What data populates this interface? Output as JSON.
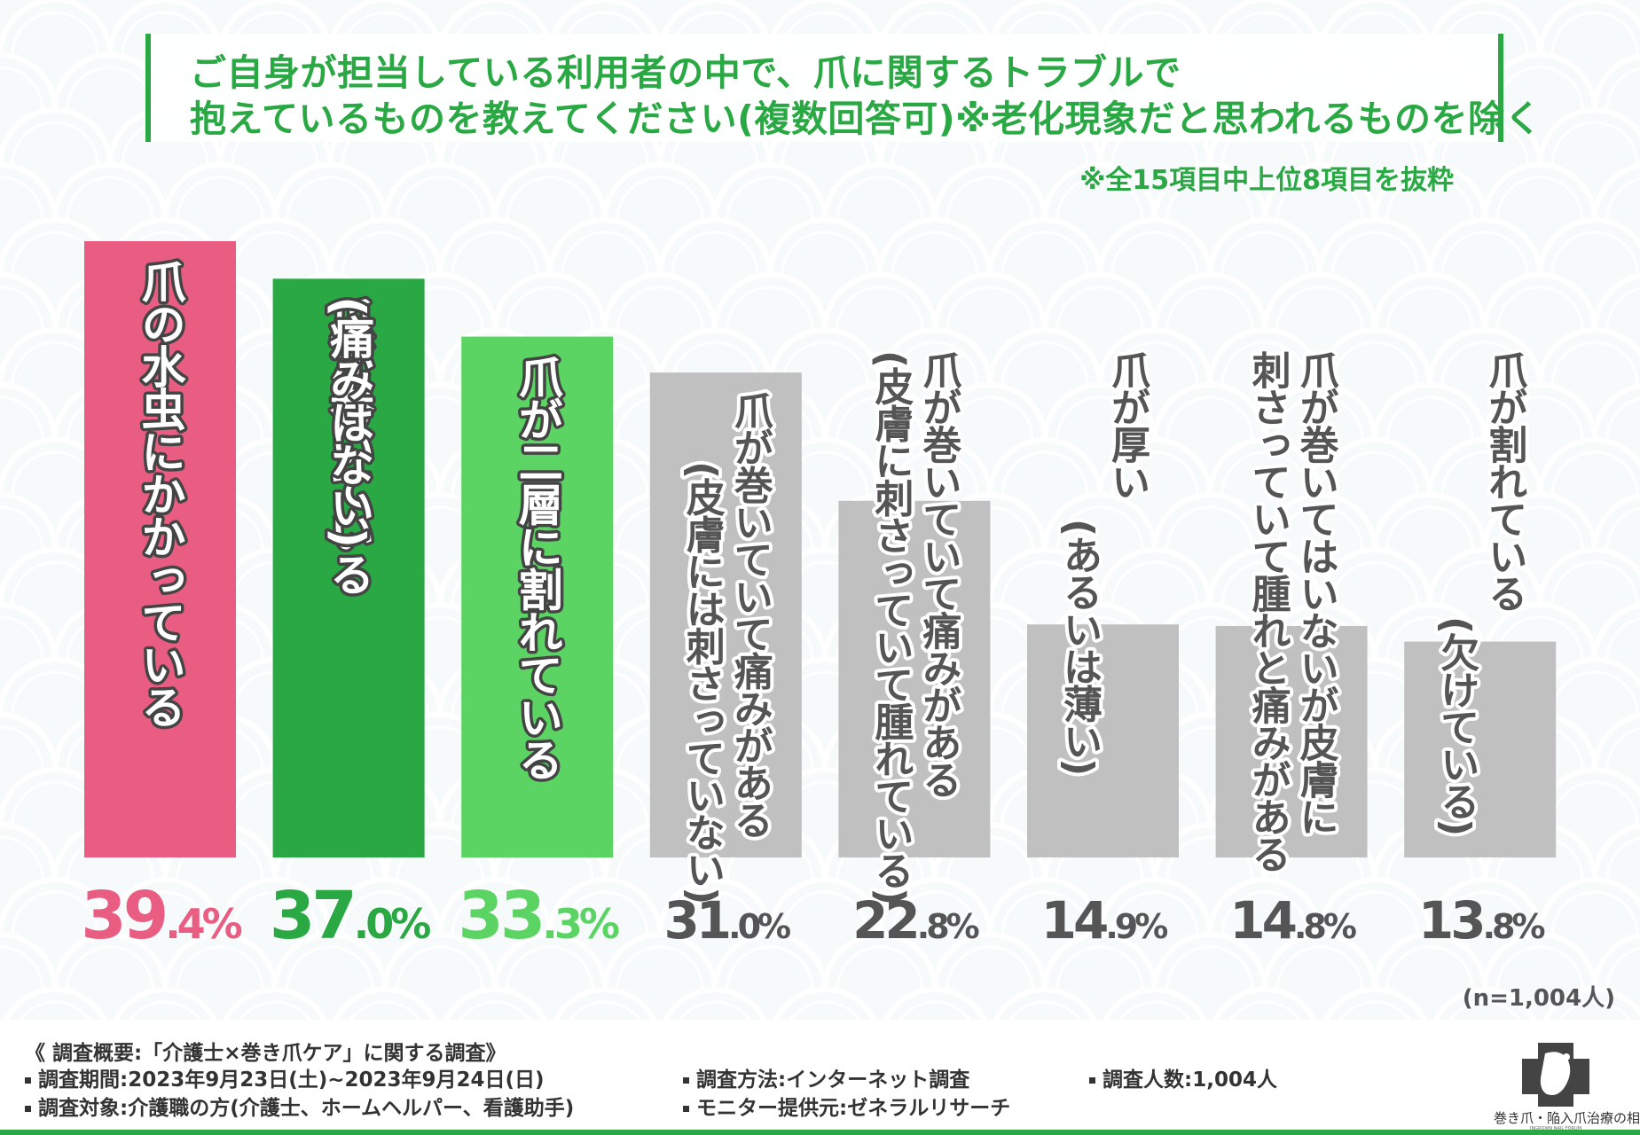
{
  "title": {
    "line1": "ご自身が担当している利用者の中で、爪に関するトラブルで",
    "line2": "抱えているものを教えてください(複数回答可)※老化現象だと思われるものを除く"
  },
  "note": "※全15項目中上位8項目を抜粋",
  "sample_size": "(n=1,004人)",
  "colors": {
    "accent": "#2aa843",
    "bar1": "#e85d81",
    "bar2": "#2aa843",
    "bar3": "#5cd464",
    "bar_gray": "#c0c0c0",
    "pct_gray": "#555555"
  },
  "chart_data": {
    "type": "bar",
    "title": "ご自身が担当している利用者の中で、爪に関するトラブルで抱えているものを教えてください(複数回答可)※老化現象だと思われるものを除く",
    "unit": "%",
    "ylim": [
      0,
      40
    ],
    "categories": [
      "爪の水虫にかかっている",
      "爪が巻いている(痛みはない)",
      "爪が二層に割れている",
      "爪が巻いていて痛みがある(皮膚には刺さっていない)",
      "爪が巻いていて痛みがある(皮膚に刺さっていて腫れている)",
      "爪が厚い(あるいは薄い)",
      "爪が巻いてはいないが皮膚に刺さっていて腫れと痛みがある",
      "爪が割れている(欠けている)"
    ],
    "values": [
      39.4,
      37.0,
      33.3,
      31.0,
      22.8,
      14.9,
      14.8,
      13.8
    ],
    "value_labels": [
      "39.4%",
      "37.0%",
      "33.3%",
      "31.0%",
      "22.8%",
      "14.9%",
      "14.8%",
      "13.8%"
    ],
    "label_columns": [
      [
        "爪の水虫にかかっている"
      ],
      [
        "爪が巻いている",
        "(痛みはない)"
      ],
      [
        "爪が二層に割れている"
      ],
      [
        "爪が巻いていて痛みがある",
        "(皮膚には刺さっていない)"
      ],
      [
        "爪が巻いていて痛みがある",
        "(皮膚に刺さっていて腫れている)"
      ],
      [
        "爪が厚い",
        "(あるいは薄い)"
      ],
      [
        "爪が巻いてはいないが皮膚に",
        "刺さっていて腫れと痛みがある"
      ],
      [
        "爪が割れている",
        "(欠けている)"
      ]
    ]
  },
  "footer": {
    "heading": "《 調査概要:「介護士×巻き爪ケア」に関する調査》",
    "period": "調査期間:2023年9月23日(土)~2023年9月24日(日)",
    "target": "調査対象:介護職の方(介護士、ホームヘルパー、看護助手)",
    "method": "調査方法:インターネット調査",
    "monitor": "モニター提供元:ゼネラルリサーチ",
    "count": "調査人数:1,004人",
    "logo_text": "巻き爪・陥入爪治療の相談室",
    "logo_sub": "INGROWN NAIL FORUM"
  }
}
